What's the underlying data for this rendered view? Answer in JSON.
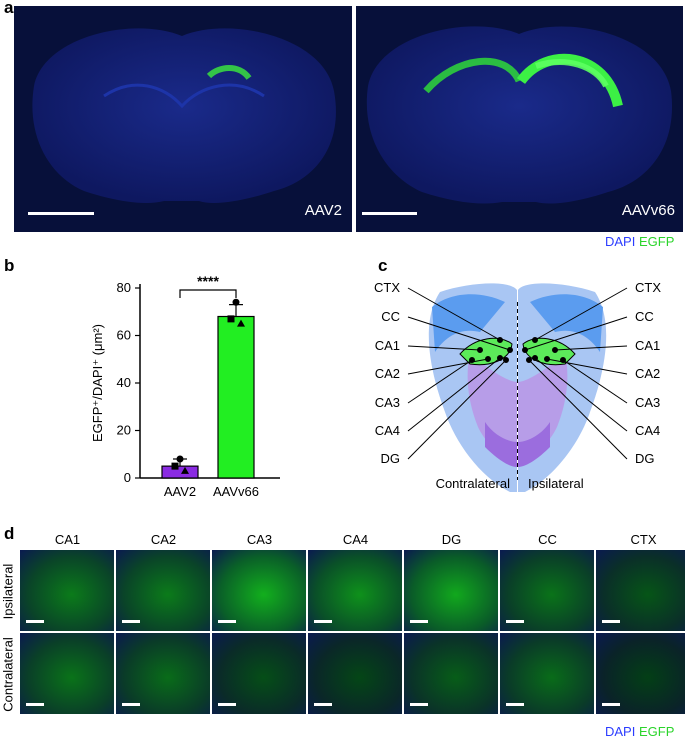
{
  "panel_a": {
    "label": "a",
    "left_tag": "AAV2",
    "right_tag": "AAVv66",
    "legend_dapi": "DAPI",
    "legend_egfp": "EGFP"
  },
  "panel_b": {
    "label": "b",
    "chart_data": {
      "type": "bar",
      "categories": [
        "AAV2",
        "AAVv66"
      ],
      "values": [
        5,
        68
      ],
      "errors": [
        3,
        5
      ],
      "points": [
        [
          8,
          5,
          3
        ],
        [
          74,
          67,
          65
        ]
      ],
      "ylabel": "EGFP⁺/DAPI⁺ (μm²)",
      "ylim": [
        0,
        80
      ],
      "yticks": [
        0,
        20,
        40,
        60,
        80
      ],
      "significance": "****",
      "colors": [
        "#8a2be2",
        "#22ee22"
      ]
    }
  },
  "panel_c": {
    "label": "c",
    "left_labels": [
      "CTX",
      "CC",
      "CA1",
      "CA2",
      "CA3",
      "CA4",
      "DG"
    ],
    "right_labels": [
      "CTX",
      "CC",
      "CA1",
      "CA2",
      "CA3",
      "CA4",
      "DG"
    ],
    "contralateral": "Contralateral",
    "ipsilateral": "Ipsilateral"
  },
  "panel_d": {
    "label": "d",
    "columns": [
      "CA1",
      "CA2",
      "CA3",
      "CA4",
      "DG",
      "CC",
      "CTX"
    ],
    "rows": [
      "Ipsilateral",
      "Contralateral"
    ],
    "legend_dapi": "DAPI",
    "legend_egfp": "EGFP"
  }
}
